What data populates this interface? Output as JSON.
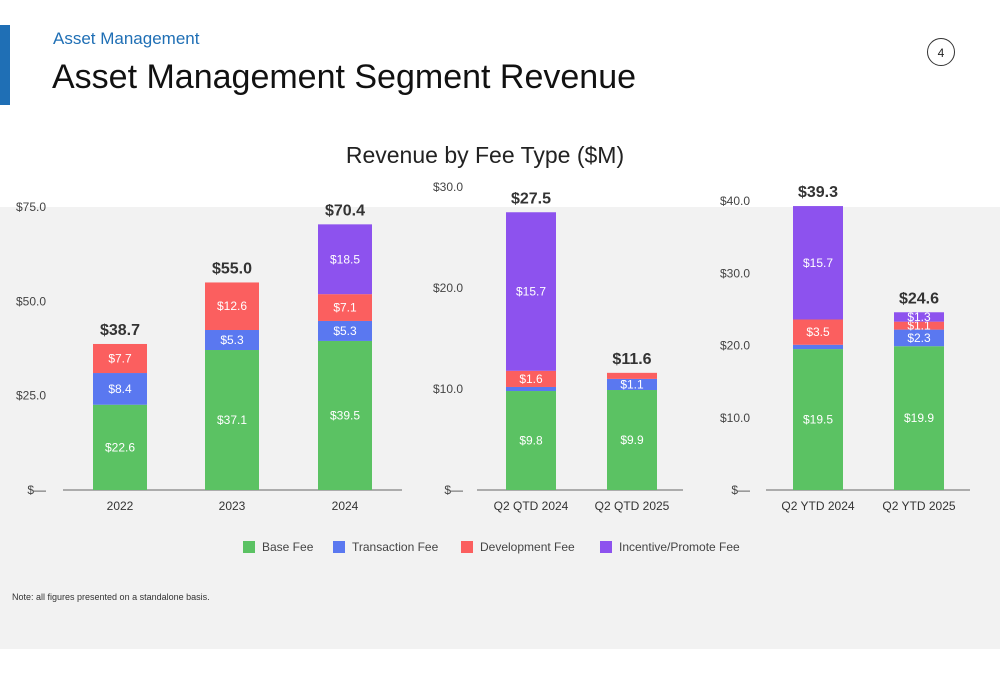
{
  "header": {
    "section": "Asset Management",
    "title": "Asset Management Segment Revenue",
    "page_number": "4",
    "accent_color": "#1f6fb5"
  },
  "footnote": "Note: all figures presented on a standalone basis.",
  "legend": [
    {
      "name": "Base Fee",
      "color": "#5bc263"
    },
    {
      "name": "Transaction Fee",
      "color": "#5a78f0"
    },
    {
      "name": "Development Fee",
      "color": "#fb5f5f"
    },
    {
      "name": "Incentive/Promote Fee",
      "color": "#8d52ee"
    }
  ],
  "chart_title": "Revenue by Fee Type ($M)",
  "chart_data": [
    {
      "type": "bar",
      "stacked": true,
      "title": "Revenue by Fee Type ($M)",
      "categories": [
        "2022",
        "2023",
        "2024"
      ],
      "ylim": [
        0,
        75
      ],
      "y_ticks": [
        "$—",
        "$25.0",
        "$50.0",
        "$75.0"
      ],
      "y_tick_values": [
        0,
        25,
        50,
        75
      ],
      "series": [
        {
          "name": "Base Fee",
          "values": [
            22.6,
            37.1,
            39.5
          ],
          "labels": [
            "$22.6",
            "$37.1",
            "$39.5"
          ]
        },
        {
          "name": "Transaction Fee",
          "values": [
            8.4,
            5.3,
            5.3
          ],
          "labels": [
            "$8.4",
            "$5.3",
            "$5.3"
          ]
        },
        {
          "name": "Development Fee",
          "values": [
            7.7,
            12.6,
            7.1
          ],
          "labels": [
            "$7.7",
            "$12.6",
            "$7.1"
          ]
        },
        {
          "name": "Incentive/Promote Fee",
          "values": [
            0,
            0,
            18.5
          ],
          "labels": [
            "",
            "",
            "$18.5"
          ]
        }
      ],
      "totals": [
        "$38.7",
        "$55.0",
        "$70.4"
      ]
    },
    {
      "type": "bar",
      "stacked": true,
      "categories": [
        "Q2 QTD 2024",
        "Q2 QTD 2025"
      ],
      "ylim": [
        0,
        30
      ],
      "y_ticks": [
        "$—",
        "$10.0",
        "$20.0",
        "$30.0"
      ],
      "y_tick_values": [
        0,
        10,
        20,
        30
      ],
      "series": [
        {
          "name": "Base Fee",
          "values": [
            9.8,
            9.9
          ],
          "labels": [
            "$9.8",
            "$9.9"
          ]
        },
        {
          "name": "Transaction Fee",
          "values": [
            0.4,
            1.1
          ],
          "labels": [
            "",
            "$1.1"
          ]
        },
        {
          "name": "Development Fee",
          "values": [
            1.6,
            0.6
          ],
          "labels": [
            "$1.6",
            ""
          ]
        },
        {
          "name": "Incentive/Promote Fee",
          "values": [
            15.7,
            0
          ],
          "labels": [
            "$15.7",
            ""
          ]
        }
      ],
      "totals": [
        "$27.5",
        "$11.6"
      ]
    },
    {
      "type": "bar",
      "stacked": true,
      "categories": [
        "Q2 YTD 2024",
        "Q2 YTD 2025"
      ],
      "ylim": [
        0,
        40
      ],
      "y_ticks": [
        "$—",
        "$10.0",
        "$20.0",
        "$30.0",
        "$40.0"
      ],
      "y_tick_values": [
        0,
        10,
        20,
        30,
        40
      ],
      "series": [
        {
          "name": "Base Fee",
          "values": [
            19.5,
            19.9
          ],
          "labels": [
            "$19.5",
            "$19.9"
          ]
        },
        {
          "name": "Transaction Fee",
          "values": [
            0.6,
            2.3
          ],
          "labels": [
            "",
            "$2.3"
          ]
        },
        {
          "name": "Development Fee",
          "values": [
            3.5,
            1.1
          ],
          "labels": [
            "$3.5",
            "$1.1"
          ]
        },
        {
          "name": "Incentive/Promote Fee",
          "values": [
            15.7,
            1.3
          ],
          "labels": [
            "$15.7",
            "$1.3"
          ]
        }
      ],
      "totals": [
        "$39.3",
        "$24.6"
      ]
    }
  ]
}
